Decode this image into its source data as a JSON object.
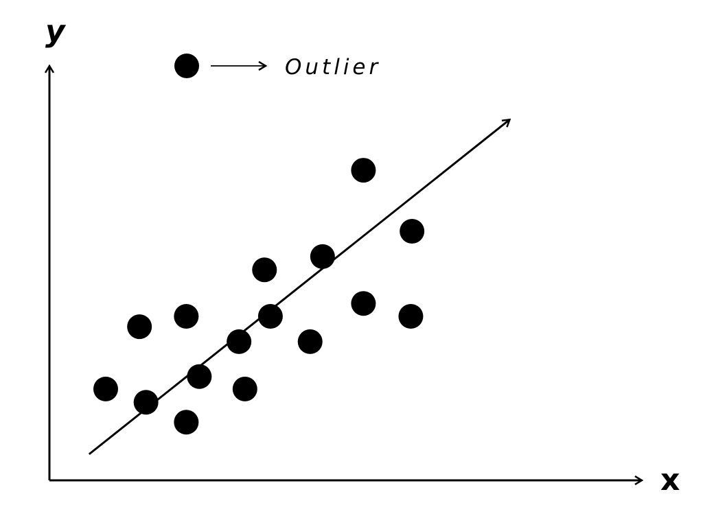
{
  "chart_data": {
    "type": "scatter",
    "title": "",
    "xlabel": "x",
    "ylabel": "y",
    "xlim": [
      0,
      100
    ],
    "ylim": [
      0,
      100
    ],
    "grid": false,
    "ticks": false,
    "legend": {
      "placement": "top-left",
      "label": "Outlier",
      "marker": "filled-circle"
    },
    "marker_color": "#000000",
    "points": [
      {
        "x": 9.5,
        "y": 22.0
      },
      {
        "x": 15.2,
        "y": 37.0
      },
      {
        "x": 16.3,
        "y": 18.8
      },
      {
        "x": 23.1,
        "y": 39.5
      },
      {
        "x": 23.1,
        "y": 14.0
      },
      {
        "x": 25.3,
        "y": 25.0
      },
      {
        "x": 32.0,
        "y": 33.4
      },
      {
        "x": 33.0,
        "y": 22.0
      },
      {
        "x": 36.3,
        "y": 50.7
      },
      {
        "x": 37.3,
        "y": 39.5
      },
      {
        "x": 44.0,
        "y": 33.4
      },
      {
        "x": 46.1,
        "y": 53.9
      },
      {
        "x": 53.0,
        "y": 74.7
      },
      {
        "x": 53.0,
        "y": 42.6
      },
      {
        "x": 61.2,
        "y": 60.0
      },
      {
        "x": 61.0,
        "y": 39.5
      }
    ],
    "trend_line": {
      "start": {
        "x": 6.7,
        "y": 6.3
      },
      "end": {
        "x": 77.6,
        "y": 86.8
      },
      "arrow": true
    }
  }
}
